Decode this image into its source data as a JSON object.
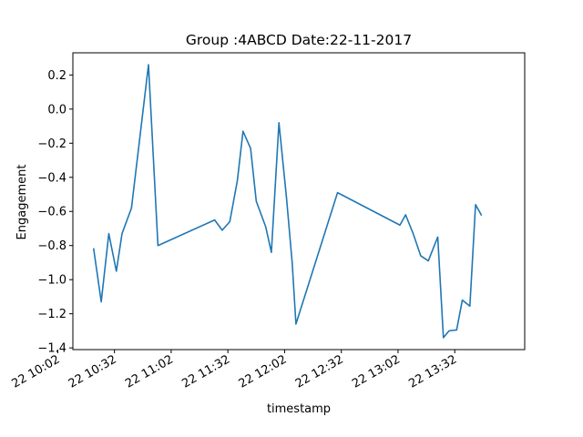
{
  "chart_data": {
    "type": "line",
    "title": "Group :4ABCD Date:22-11-2017",
    "xlabel": "timestamp",
    "ylabel": "Engagement",
    "xlim": [
      "2017-11-22 10:10",
      "2017-11-22 14:09"
    ],
    "ylim": [
      -1.41,
      0.33
    ],
    "grid": false,
    "x_ticks": [
      {
        "t": "2017-11-22 10:02",
        "label": "22 10:02"
      },
      {
        "t": "2017-11-22 10:32",
        "label": "22 10:32"
      },
      {
        "t": "2017-11-22 11:02",
        "label": "22 11:02"
      },
      {
        "t": "2017-11-22 11:32",
        "label": "22 11:32"
      },
      {
        "t": "2017-11-22 12:02",
        "label": "22 12:02"
      },
      {
        "t": "2017-11-22 12:32",
        "label": "22 12:32"
      },
      {
        "t": "2017-11-22 13:02",
        "label": "22 13:02"
      },
      {
        "t": "2017-11-22 13:32",
        "label": "22 13:32"
      }
    ],
    "y_ticks": [
      {
        "v": 0.2,
        "label": "0.2"
      },
      {
        "v": 0.0,
        "label": "0.0"
      },
      {
        "v": -0.2,
        "label": "−0.2"
      },
      {
        "v": -0.4,
        "label": "−0.4"
      },
      {
        "v": -0.6,
        "label": "−0.6"
      },
      {
        "v": -0.8,
        "label": "−0.8"
      },
      {
        "v": -1.0,
        "label": "−1.0"
      },
      {
        "v": -1.2,
        "label": "−1.2"
      },
      {
        "v": -1.4,
        "label": "−1.4"
      }
    ],
    "series": [
      {
        "color": "#1f77b4",
        "points": [
          {
            "t": "2017-11-22 10:21",
            "y": -0.82
          },
          {
            "t": "2017-11-22 10:25",
            "y": -1.13
          },
          {
            "t": "2017-11-22 10:29",
            "y": -0.73
          },
          {
            "t": "2017-11-22 10:33",
            "y": -0.95
          },
          {
            "t": "2017-11-22 10:36",
            "y": -0.73
          },
          {
            "t": "2017-11-22 10:41",
            "y": -0.58
          },
          {
            "t": "2017-11-22 10:50",
            "y": 0.26
          },
          {
            "t": "2017-11-22 10:55",
            "y": -0.8
          },
          {
            "t": "2017-11-22 11:25",
            "y": -0.65
          },
          {
            "t": "2017-11-22 11:29",
            "y": -0.71
          },
          {
            "t": "2017-11-22 11:33",
            "y": -0.66
          },
          {
            "t": "2017-11-22 11:37",
            "y": -0.42
          },
          {
            "t": "2017-11-22 11:40",
            "y": -0.13
          },
          {
            "t": "2017-11-22 11:44",
            "y": -0.23
          },
          {
            "t": "2017-11-22 11:47",
            "y": -0.54
          },
          {
            "t": "2017-11-22 11:52",
            "y": -0.69
          },
          {
            "t": "2017-11-22 11:55",
            "y": -0.84
          },
          {
            "t": "2017-11-22 11:59",
            "y": -0.08
          },
          {
            "t": "2017-11-22 12:03",
            "y": -0.52
          },
          {
            "t": "2017-11-22 12:06",
            "y": -0.9
          },
          {
            "t": "2017-11-22 12:08",
            "y": -1.26
          },
          {
            "t": "2017-11-22 12:30",
            "y": -0.49
          },
          {
            "t": "2017-11-22 13:03",
            "y": -0.68
          },
          {
            "t": "2017-11-22 13:06",
            "y": -0.62
          },
          {
            "t": "2017-11-22 13:10",
            "y": -0.73
          },
          {
            "t": "2017-11-22 13:14",
            "y": -0.86
          },
          {
            "t": "2017-11-22 13:18",
            "y": -0.89
          },
          {
            "t": "2017-11-22 13:23",
            "y": -0.75
          },
          {
            "t": "2017-11-22 13:26",
            "y": -1.34
          },
          {
            "t": "2017-11-22 13:29",
            "y": -1.3
          },
          {
            "t": "2017-11-22 13:33",
            "y": -1.295
          },
          {
            "t": "2017-11-22 13:36",
            "y": -1.12
          },
          {
            "t": "2017-11-22 13:40",
            "y": -1.155
          },
          {
            "t": "2017-11-22 13:43",
            "y": -0.56
          },
          {
            "t": "2017-11-22 13:46",
            "y": -0.62
          }
        ]
      }
    ]
  }
}
